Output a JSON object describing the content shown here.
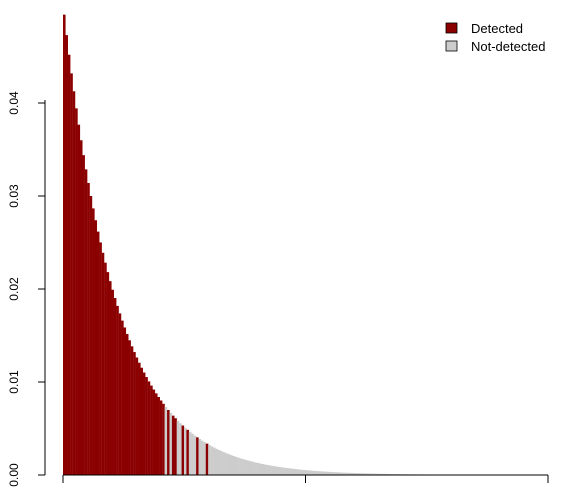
{
  "chart_data": {
    "type": "bar",
    "title": "",
    "xlabel": "",
    "ylabel": "",
    "ylim": [
      0,
      0.05
    ],
    "yticks": [
      0.0,
      0.01,
      0.02,
      0.03,
      0.04
    ],
    "ytick_labels": [
      "0.00",
      "0.01",
      "0.02",
      "0.03",
      "0.04"
    ],
    "xticks_drawn": 3,
    "n_bars": 200,
    "value_model": {
      "first_value": 0.0495,
      "decay_per_bar": 0.9555
    },
    "detected_bar_indices": [
      0,
      1,
      2,
      3,
      4,
      5,
      6,
      7,
      8,
      9,
      10,
      11,
      12,
      13,
      14,
      15,
      16,
      17,
      18,
      19,
      20,
      21,
      22,
      23,
      24,
      25,
      26,
      27,
      28,
      29,
      30,
      31,
      32,
      33,
      34,
      35,
      36,
      37,
      38,
      39,
      40,
      41,
      43,
      45,
      46,
      49,
      51,
      55,
      59
    ],
    "grid": false,
    "legend_position": "top-right",
    "series": [
      {
        "name": "Detected",
        "color": "#8b0000"
      },
      {
        "name": "Not-detected",
        "color": "#cccccc"
      }
    ]
  }
}
